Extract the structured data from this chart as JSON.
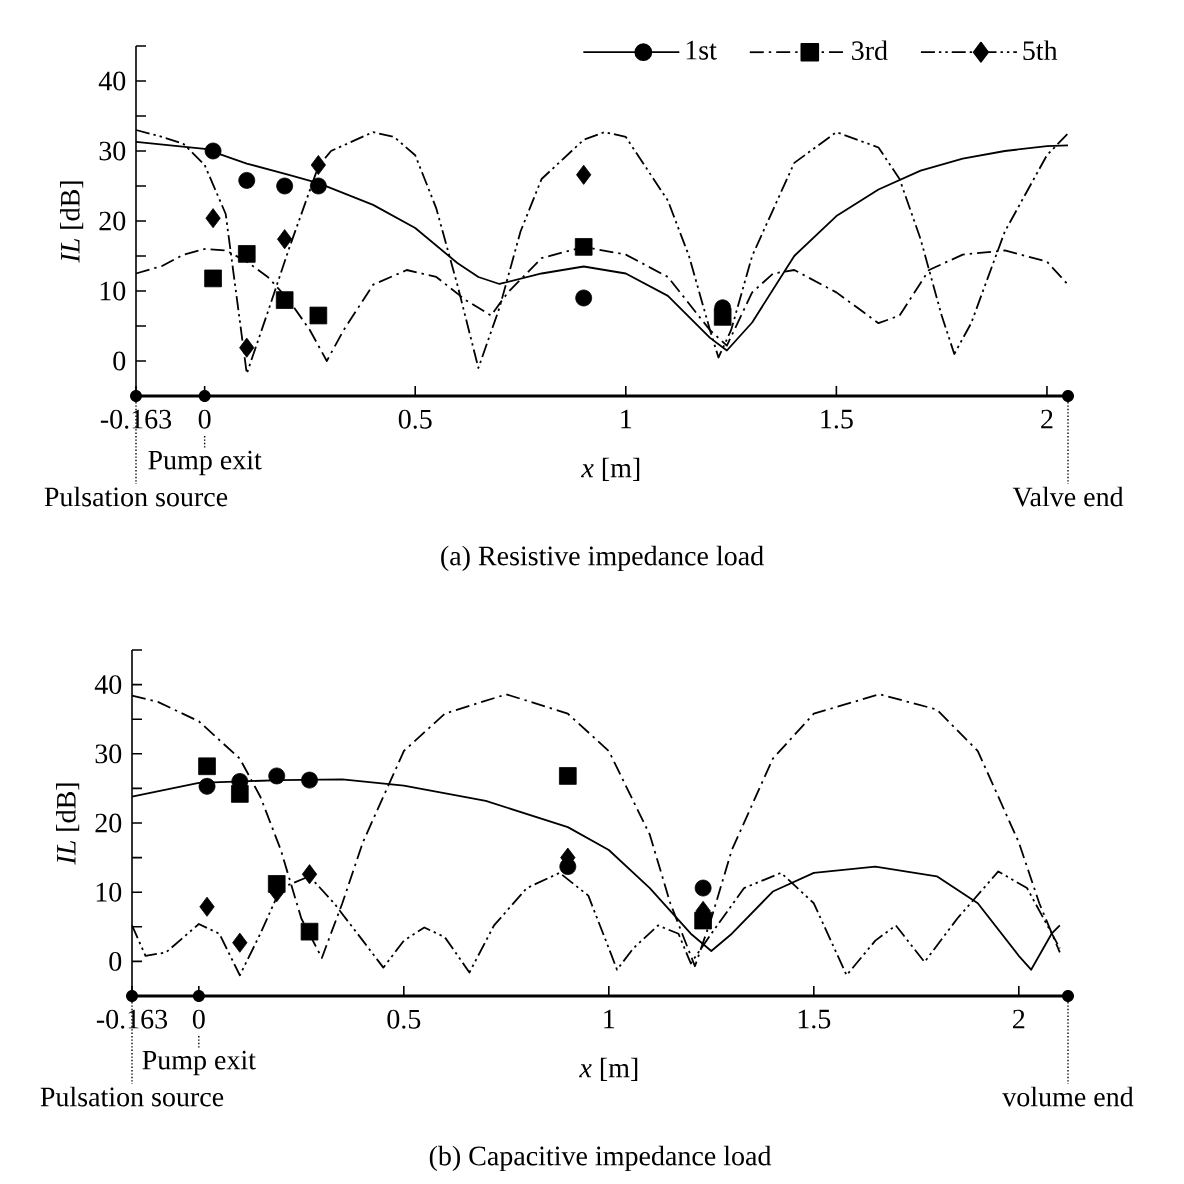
{
  "chart_data": [
    {
      "type": "line",
      "title": "(a) Resistive impedance load",
      "xlabel": "*x*   [m]",
      "ylabel": "*IL* [dB]",
      "xlim": [
        -0.163,
        2.05
      ],
      "ylim": [
        -5,
        45
      ],
      "xticks": [
        -0.163,
        0,
        0.5,
        1,
        1.5,
        2
      ],
      "yticks": [
        0,
        {
          "value": 5,
          "label": null
        },
        10,
        {
          "value": 15,
          "label": null
        },
        20,
        {
          "value": 25,
          "label": null
        },
        30,
        {
          "value": 35,
          "label": null
        },
        40,
        {
          "value": 45,
          "label": null
        }
      ],
      "legend": "top right",
      "series": [
        {
          "name": "1st",
          "color": "#000000",
          "marker": "none",
          "line_style": "solid",
          "x": [
            -0.163,
            0,
            0.1,
            0.2,
            0.27,
            0.4,
            0.5,
            0.6,
            0.65,
            0.7,
            0.8,
            0.9,
            1.0,
            1.1,
            1.2,
            1.24,
            1.3,
            1.4,
            1.5,
            1.6,
            1.7,
            1.8,
            1.9,
            2.0,
            2.05
          ],
          "values": [
            31.3,
            30.3,
            28.2,
            26.6,
            25.4,
            22.3,
            19,
            14,
            12,
            11,
            12.5,
            13.5,
            12.5,
            9.3,
            3.3,
            1.5,
            5.5,
            15,
            20.7,
            24.5,
            27.2,
            28.9,
            30,
            30.7,
            30.8
          ]
        },
        {
          "name": "3rd",
          "color": "#000000",
          "marker": "none",
          "line_style": "dashed",
          "x": [
            -0.163,
            -0.1,
            -0.05,
            0,
            0.05,
            0.1,
            0.15,
            0.2,
            0.25,
            0.29,
            0.33,
            0.4,
            0.48,
            0.55,
            0.62,
            0.68,
            0.72,
            0.8,
            0.9,
            1.0,
            1.1,
            1.2,
            1.24,
            1.3,
            1.35,
            1.4,
            1.5,
            1.6,
            1.65,
            1.72,
            1.8,
            1.9,
            2.0,
            2.05
          ],
          "values": [
            12.5,
            13.6,
            15.2,
            16,
            15.8,
            14.2,
            12,
            8.7,
            4.4,
            0,
            4.4,
            10.9,
            13,
            12,
            8.7,
            6.5,
            9.8,
            14.7,
            16.3,
            15.2,
            12,
            4.4,
            2.2,
            9.8,
            12.5,
            13,
            9.8,
            5.4,
            6.5,
            13,
            15.2,
            15.8,
            14.2,
            10.9
          ]
        },
        {
          "name": "5th",
          "color": "#000000",
          "marker": "none",
          "line_style": "dotted",
          "x": [
            -0.163,
            -0.1,
            -0.05,
            0,
            0.05,
            0.1,
            0.15,
            0.2,
            0.27,
            0.3,
            0.4,
            0.45,
            0.5,
            0.55,
            0.6,
            0.65,
            0.7,
            0.75,
            0.8,
            0.9,
            0.95,
            1.0,
            1.1,
            1.15,
            1.2,
            1.22,
            1.25,
            1.3,
            1.4,
            1.5,
            1.6,
            1.65,
            1.7,
            1.75,
            1.78,
            1.82,
            1.9,
            2.0,
            2.05
          ],
          "values": [
            33,
            32,
            31,
            28,
            21,
            -1.8,
            7,
            16,
            27.8,
            30,
            32.7,
            32,
            29.4,
            21.8,
            10.9,
            -1,
            7.6,
            18.5,
            26,
            31.6,
            32.7,
            32,
            22.9,
            15,
            4.4,
            0.5,
            4.4,
            15,
            28.3,
            32.7,
            30.5,
            26,
            17.4,
            6.5,
            1,
            5.4,
            18.5,
            29.4,
            32.5
          ]
        },
        {
          "type": "scatter",
          "color": "#000000",
          "marker": "circle",
          "x": [
            0.02,
            0.1,
            0.19,
            0.27,
            0.9,
            1.23
          ],
          "values": [
            30,
            25.8,
            25,
            25,
            9,
            7.6
          ]
        },
        {
          "type": "scatter",
          "color": "#000000",
          "marker": "square",
          "x": [
            0.02,
            0.1,
            0.19,
            0.27,
            0.9,
            1.23
          ],
          "values": [
            11.8,
            15.3,
            8.7,
            6.5,
            16.3,
            6.3
          ]
        },
        {
          "type": "scatter",
          "color": "#000000",
          "marker": "diamond",
          "x": [
            0.02,
            0.1,
            0.19,
            0.27,
            0.9
          ],
          "values": [
            20.4,
            1.9,
            17.4,
            28,
            26.6
          ]
        }
      ],
      "annotations": [
        {
          "text": "Pulsation source",
          "x": -0.163,
          "y": -5
        },
        {
          "text": "Pump exit",
          "x": 0,
          "y": -5
        },
        {
          "text": "Valve end",
          "x": 2.05,
          "y": -5
        }
      ]
    },
    {
      "type": "line",
      "title": "(b) Capacitive impedance load",
      "xlabel": "*x*   [m]",
      "ylabel": "*IL* [dB]",
      "xlim": [
        -0.163,
        2.12
      ],
      "ylim": [
        -5,
        45
      ],
      "xticks": [
        -0.163,
        0,
        0.5,
        1,
        1.5,
        2
      ],
      "yticks": [
        0,
        {
          "value": 5,
          "label": null
        },
        10,
        {
          "value": 15,
          "label": null
        },
        20,
        {
          "value": 25,
          "label": null
        },
        30,
        {
          "value": 35,
          "label": null
        },
        40,
        {
          "value": 45,
          "label": null
        }
      ],
      "series": [
        {
          "color": "#000000",
          "marker": "none",
          "line_style": "solid",
          "x": [
            -0.163,
            0,
            0.2,
            0.35,
            0.5,
            0.7,
            0.9,
            1.0,
            1.1,
            1.2,
            1.25,
            1.3,
            1.4,
            1.5,
            1.65,
            1.8,
            1.9,
            2.0,
            2.03,
            2.08,
            2.1
          ],
          "values": [
            23.8,
            25.8,
            26.2,
            26.3,
            25.4,
            23.2,
            19.4,
            16.1,
            10.6,
            4,
            1.5,
            4,
            10.1,
            12.8,
            13.7,
            12.3,
            8.4,
            0.8,
            -1.2,
            4,
            5.2
          ]
        },
        {
          "color": "#000000",
          "marker": "none",
          "line_style": "dashed",
          "x": [
            -0.163,
            -0.1,
            0,
            0.1,
            0.15,
            0.2,
            0.25,
            0.3,
            0.35,
            0.4,
            0.5,
            0.6,
            0.75,
            0.9,
            1.0,
            1.1,
            1.15,
            1.21,
            1.25,
            1.3,
            1.4,
            1.5,
            1.66,
            1.8,
            1.9,
            2.0,
            2.05,
            2.1
          ],
          "values": [
            38.4,
            37.5,
            34.7,
            29.3,
            23.8,
            16.1,
            6.2,
            0.5,
            8.4,
            17.2,
            30.4,
            35.8,
            38.6,
            35.8,
            30.4,
            18.3,
            8.4,
            -0.7,
            6.2,
            16.1,
            29.3,
            35.8,
            38.6,
            36.4,
            30.4,
            17.2,
            8.4,
            1.3
          ]
        },
        {
          "color": "#000000",
          "marker": "none",
          "line_style": "dotted",
          "x": [
            -0.163,
            -0.13,
            -0.08,
            0,
            0.05,
            0.1,
            0.15,
            0.2,
            0.27,
            0.33,
            0.4,
            0.45,
            0.5,
            0.55,
            0.6,
            0.66,
            0.72,
            0.8,
            0.88,
            0.95,
            1.0,
            1.02,
            1.06,
            1.12,
            1.17,
            1.2,
            1.25,
            1.33,
            1.42,
            1.5,
            1.58,
            1.65,
            1.7,
            1.77,
            1.85,
            1.95,
            2.02,
            2.1
          ],
          "values": [
            5.2,
            0.8,
            1.3,
            5.4,
            4,
            -2,
            4,
            10.6,
            12.3,
            8.4,
            3,
            -0.9,
            3,
            4.9,
            3.5,
            -1.6,
            5.2,
            10.6,
            12.8,
            9.5,
            1.9,
            -1.2,
            1.9,
            5.2,
            4,
            -0.3,
            4,
            10.6,
            12.8,
            8.4,
            -2,
            3,
            5.2,
            -0.1,
            6.2,
            13,
            10.6,
            1.9
          ]
        },
        {
          "type": "scatter",
          "color": "#000000",
          "marker": "circle",
          "x": [
            0.02,
            0.1,
            0.19,
            0.27,
            0.9,
            1.23
          ],
          "values": [
            25.3,
            26,
            26.8,
            26.2,
            13.7,
            10.6
          ]
        },
        {
          "type": "scatter",
          "color": "#000000",
          "marker": "square",
          "x": [
            0.02,
            0.1,
            0.19,
            0.27,
            0.9,
            1.23
          ],
          "values": [
            28.2,
            24.2,
            11.2,
            4.3,
            26.8,
            5.9
          ]
        },
        {
          "type": "scatter",
          "color": "#000000",
          "marker": "diamond",
          "x": [
            0.02,
            0.1,
            0.19,
            0.27,
            0.9,
            1.23
          ],
          "values": [
            7.9,
            2.7,
            10,
            12.6,
            15,
            7.3
          ]
        }
      ],
      "annotations": [
        {
          "text": "Pulsation source",
          "x": -0.163,
          "y": -5
        },
        {
          "text": "Pump exit",
          "x": 0,
          "y": -5
        },
        {
          "text": "volume end",
          "x": 2.12,
          "y": -5
        }
      ]
    }
  ]
}
